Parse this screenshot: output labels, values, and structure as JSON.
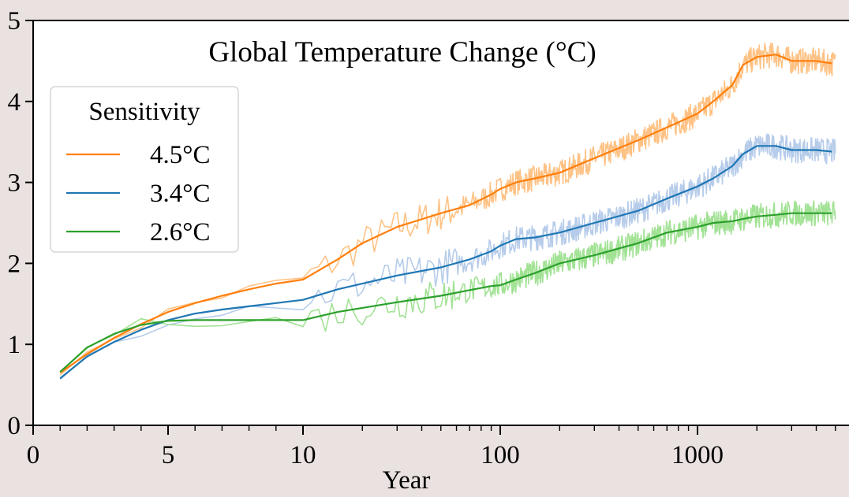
{
  "chart_data": {
    "type": "line",
    "title": "Global Temperature Change (°C)",
    "xlabel": "Year",
    "ylabel": "",
    "x_scale": "piecewise: linear 0–10, log 10–5000",
    "xlim": [
      0,
      5000
    ],
    "ylim": [
      0,
      5
    ],
    "x_ticks": [
      0,
      5,
      10,
      100,
      1000
    ],
    "x_tick_labels": [
      "0",
      "5",
      "10",
      "100",
      "1000"
    ],
    "y_ticks": [
      0,
      1,
      2,
      3,
      4,
      5
    ],
    "y_tick_labels": [
      "0",
      "1",
      "2",
      "3",
      "4",
      "5"
    ],
    "grid": false,
    "legend": {
      "title": "Sensitivity",
      "placement": "upper-left"
    },
    "series": [
      {
        "name": "4.5°C",
        "color": "#ff7f0e",
        "band_color": "#ffbb78",
        "x": [
          1,
          2,
          3,
          4,
          5,
          6,
          7,
          8,
          9,
          10,
          15,
          20,
          30,
          50,
          70,
          90,
          100,
          120,
          150,
          200,
          300,
          500,
          700,
          1000,
          1200,
          1500,
          1700,
          2000,
          2500,
          3000,
          4000,
          4800
        ],
        "values": [
          0.65,
          0.88,
          1.08,
          1.25,
          1.4,
          1.51,
          1.6,
          1.68,
          1.75,
          1.8,
          2.05,
          2.25,
          2.45,
          2.62,
          2.72,
          2.85,
          2.92,
          3.0,
          3.05,
          3.12,
          3.3,
          3.52,
          3.68,
          3.85,
          4.0,
          4.2,
          4.45,
          4.55,
          4.58,
          4.5,
          4.5,
          4.47
        ]
      },
      {
        "name": "3.4°C",
        "color": "#1f77b4",
        "band_color": "#aec7e8",
        "x": [
          1,
          2,
          3,
          4,
          5,
          6,
          7,
          8,
          9,
          10,
          15,
          20,
          30,
          50,
          70,
          90,
          100,
          120,
          150,
          200,
          300,
          500,
          700,
          1000,
          1200,
          1500,
          1700,
          2000,
          2500,
          3000,
          4000,
          4800
        ],
        "values": [
          0.58,
          0.85,
          1.03,
          1.18,
          1.3,
          1.38,
          1.43,
          1.47,
          1.51,
          1.55,
          1.68,
          1.75,
          1.85,
          1.95,
          2.05,
          2.15,
          2.22,
          2.3,
          2.32,
          2.38,
          2.5,
          2.65,
          2.8,
          2.95,
          3.05,
          3.2,
          3.35,
          3.45,
          3.45,
          3.4,
          3.4,
          3.38
        ]
      },
      {
        "name": "2.6°C",
        "color": "#2ca02c",
        "band_color": "#98df8a",
        "x": [
          1,
          2,
          3,
          4,
          5,
          6,
          7,
          8,
          9,
          10,
          15,
          20,
          30,
          50,
          70,
          90,
          100,
          120,
          150,
          200,
          300,
          500,
          700,
          1000,
          1200,
          1500,
          1700,
          2000,
          2500,
          3000,
          4000,
          4800
        ],
        "values": [
          0.66,
          0.96,
          1.13,
          1.24,
          1.29,
          1.3,
          1.3,
          1.3,
          1.3,
          1.3,
          1.4,
          1.45,
          1.52,
          1.6,
          1.67,
          1.72,
          1.73,
          1.8,
          1.88,
          2.0,
          2.1,
          2.25,
          2.38,
          2.45,
          2.5,
          2.52,
          2.55,
          2.58,
          2.6,
          2.62,
          2.62,
          2.62
        ]
      }
    ]
  }
}
